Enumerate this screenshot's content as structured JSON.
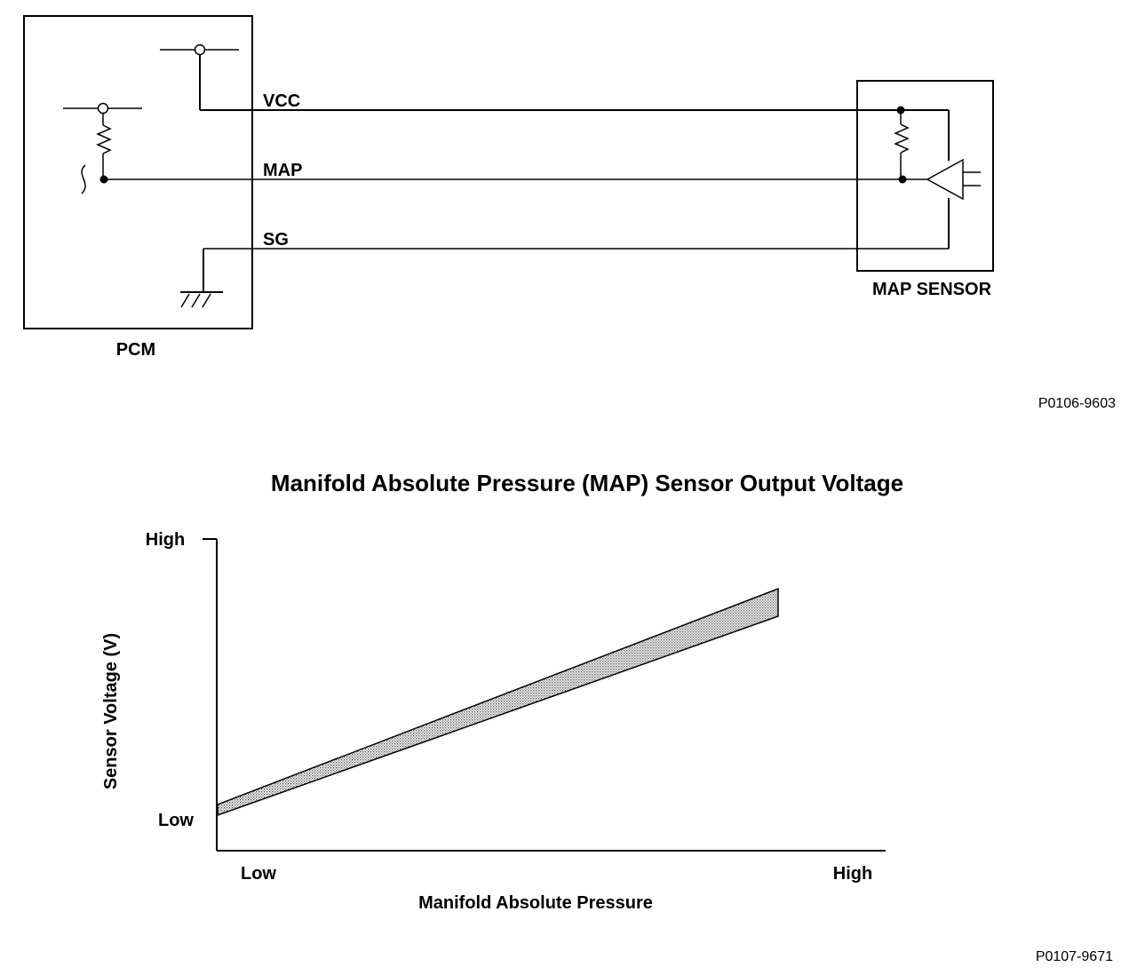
{
  "circuit": {
    "pcm_label": "PCM",
    "sensor_label": "MAP SENSOR",
    "wires": {
      "vcc": "VCC",
      "map": "MAP",
      "sg": "SG"
    },
    "figure_code": "P0106-9603"
  },
  "chart": {
    "figure_code": "P0107-9671"
  },
  "chart_data": {
    "type": "area",
    "title": "Manifold Absolute Pressure (MAP) Sensor Output Voltage",
    "xlabel": "Manifold Absolute Pressure",
    "ylabel": "Sensor Voltage (V)",
    "x_ticks": [
      "Low",
      "High"
    ],
    "y_ticks": [
      "High",
      "Low"
    ],
    "grid": false,
    "series": []
  }
}
